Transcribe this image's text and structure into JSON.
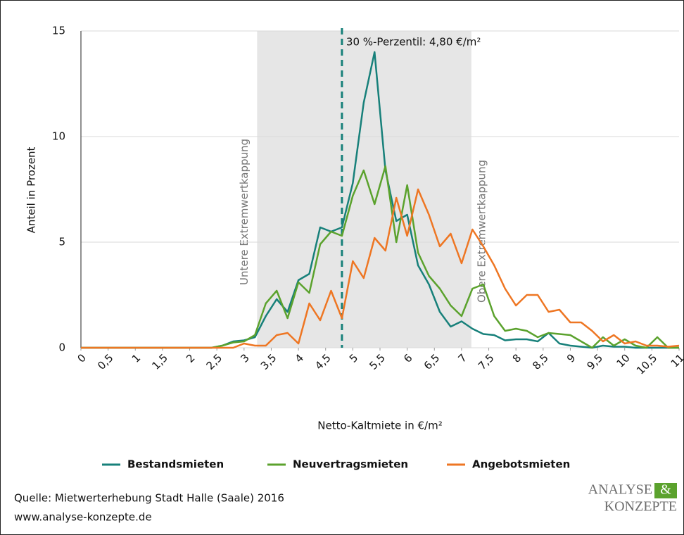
{
  "chart_data": {
    "type": "line",
    "x_label": "Netto-Kaltmiete in €/m²",
    "y_label": "Anteil in Prozent",
    "x": [
      0,
      0.2,
      0.4,
      0.6,
      0.8,
      1,
      1.2,
      1.4,
      1.6,
      1.8,
      2,
      2.2,
      2.4,
      2.6,
      2.8,
      3,
      3.2,
      3.4,
      3.6,
      3.8,
      4,
      4.2,
      4.4,
      4.6,
      4.8,
      5,
      5.2,
      5.4,
      5.6,
      5.8,
      6,
      6.2,
      6.4,
      6.6,
      6.8,
      7,
      7.2,
      7.4,
      7.6,
      7.8,
      8,
      8.2,
      8.4,
      8.6,
      8.8,
      9,
      9.2,
      9.4,
      9.6,
      9.8,
      10,
      10.2,
      10.4,
      10.6,
      10.8,
      11
    ],
    "series": [
      {
        "name": "Bestandsmieten",
        "color": "#17807a",
        "values": [
          0,
          0,
          0,
          0,
          0,
          0,
          0,
          0,
          0,
          0,
          0,
          0,
          0,
          0.1,
          0.3,
          0.35,
          0.5,
          1.5,
          2.3,
          1.7,
          3.2,
          3.5,
          5.7,
          5.5,
          5.7,
          7.8,
          11.6,
          14,
          8.4,
          6,
          6.3,
          3.9,
          3,
          1.7,
          1,
          1.25,
          0.9,
          0.65,
          0.6,
          0.35,
          0.4,
          0.4,
          0.3,
          0.7,
          0.2,
          0.1,
          0.05,
          0,
          0.1,
          0.05,
          0.05,
          0,
          0,
          0,
          0,
          0
        ]
      },
      {
        "name": "Neuvertragsmieten",
        "color": "#5ba22d",
        "values": [
          0,
          0,
          0,
          0,
          0,
          0,
          0,
          0,
          0,
          0,
          0,
          0,
          0,
          0.1,
          0.25,
          0.3,
          0.6,
          2.1,
          2.7,
          1.4,
          3.1,
          2.6,
          4.9,
          5.5,
          5.3,
          7.2,
          8.4,
          6.8,
          8.6,
          5,
          7.7,
          4.5,
          3.4,
          2.8,
          2,
          1.5,
          2.8,
          3,
          1.5,
          0.8,
          0.9,
          0.8,
          0.5,
          0.7,
          0.65,
          0.6,
          0.3,
          0,
          0.5,
          0.1,
          0.4,
          0.1,
          0,
          0.5,
          0,
          0
        ]
      },
      {
        "name": "Angebotsmieten",
        "color": "#ee7623",
        "values": [
          0,
          0,
          0,
          0,
          0,
          0,
          0,
          0,
          0,
          0,
          0,
          0,
          0,
          0,
          0,
          0.2,
          0.1,
          0.1,
          0.6,
          0.7,
          0.2,
          2.1,
          1.3,
          2.7,
          1.4,
          4.1,
          3.3,
          5.2,
          4.6,
          7.1,
          5.3,
          7.5,
          6.3,
          4.8,
          5.4,
          4,
          5.6,
          4.8,
          3.9,
          2.8,
          2,
          2.5,
          2.5,
          1.7,
          1.8,
          1.2,
          1.2,
          0.8,
          0.3,
          0.6,
          0.2,
          0.3,
          0.1,
          0.1,
          0.05,
          0.1
        ]
      }
    ],
    "xlim": [
      0,
      11
    ],
    "ylim": [
      0,
      15
    ],
    "xticks": [
      0,
      {
        "value": 0.5,
        "label": "0,5"
      },
      1,
      {
        "value": 1.5,
        "label": "1,5"
      },
      2,
      {
        "value": 2.5,
        "label": "2,5"
      },
      3,
      {
        "value": 3.5,
        "label": "3,5"
      },
      4,
      {
        "value": 4.5,
        "label": "4,5"
      },
      5,
      {
        "value": 5.5,
        "label": "5,5"
      },
      6,
      {
        "value": 6.5,
        "label": "6,5"
      },
      7,
      {
        "value": 7.5,
        "label": "7,5"
      },
      8,
      {
        "value": 8.5,
        "label": "8,5"
      },
      9,
      {
        "value": 9.5,
        "label": "9,5"
      },
      10,
      {
        "value": 10.5,
        "label": "10,5"
      },
      11
    ],
    "yticks": [
      0,
      5,
      10,
      15
    ],
    "grid": true,
    "shaded_range": [
      3.24,
      7.18
    ],
    "lower_cap_label": "Untere Extremwertkappung",
    "upper_cap_label": "Obere Extremwertkappung",
    "percentile": {
      "value": 4.8,
      "label": "30 %-Perzentil: 4,80 €/m²",
      "color": "#17807a"
    }
  },
  "source": [
    "Quelle: Mietwerterhebung Stadt Halle (Saale) 2016",
    "www.analyse-konzepte.de"
  ],
  "logo": {
    "line1": "ANALYSE",
    "amp": "&",
    "line2": "KONZEPTE"
  }
}
